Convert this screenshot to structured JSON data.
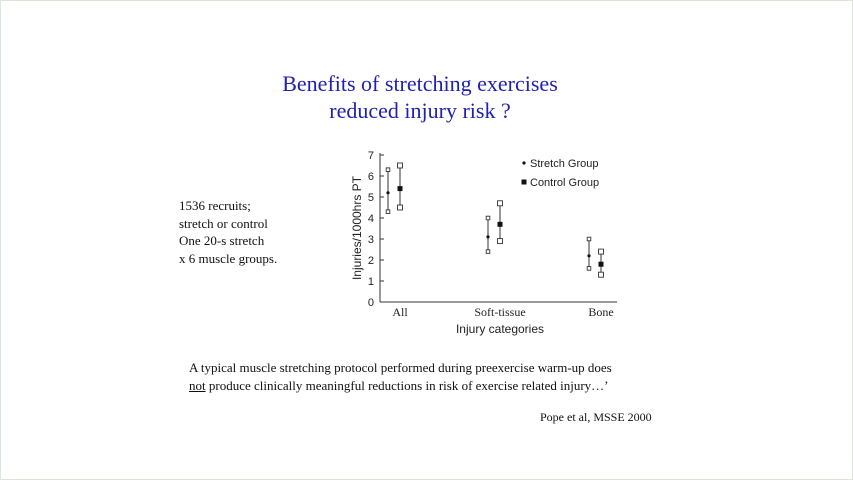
{
  "slide": {
    "title_line1": "Benefits of stretching exercises",
    "title_line2": "reduced injury risk ?",
    "notes": [
      "1536 recruits;",
      "stretch or control",
      "One 20-s stretch",
      "x 6 muscle groups."
    ],
    "quote_part1": "A typical muscle stretching protocol performed during preexercise warm-up does",
    "quote_underlined": "not",
    "quote_part2": " produce clinically meaningful reductions in risk of exercise related injury…’",
    "citation": "Pope et al, MSSE 2000"
  },
  "chart_data": {
    "type": "scatter",
    "title": "",
    "xlabel": "Injury categories",
    "ylabel": "Injuries/1000hrs PT",
    "ylim": [
      0,
      7
    ],
    "yticks": [
      0,
      1,
      2,
      3,
      4,
      5,
      6,
      7
    ],
    "categories": [
      "All",
      "Soft-tissue",
      "Bone"
    ],
    "legend_position": "top-right",
    "grid": false,
    "series": [
      {
        "name": "Stretch Group",
        "marker": "small-dot",
        "color": "#222222",
        "values": [
          5.2,
          3.1,
          2.2
        ],
        "upper": [
          6.3,
          4.0,
          3.0
        ],
        "lower": [
          4.3,
          2.4,
          1.6
        ]
      },
      {
        "name": "Control Group",
        "marker": "filled-square",
        "color": "#222222",
        "values": [
          5.4,
          3.7,
          1.8
        ],
        "upper": [
          6.5,
          4.7,
          2.4
        ],
        "lower": [
          4.5,
          2.9,
          1.3
        ]
      }
    ]
  }
}
